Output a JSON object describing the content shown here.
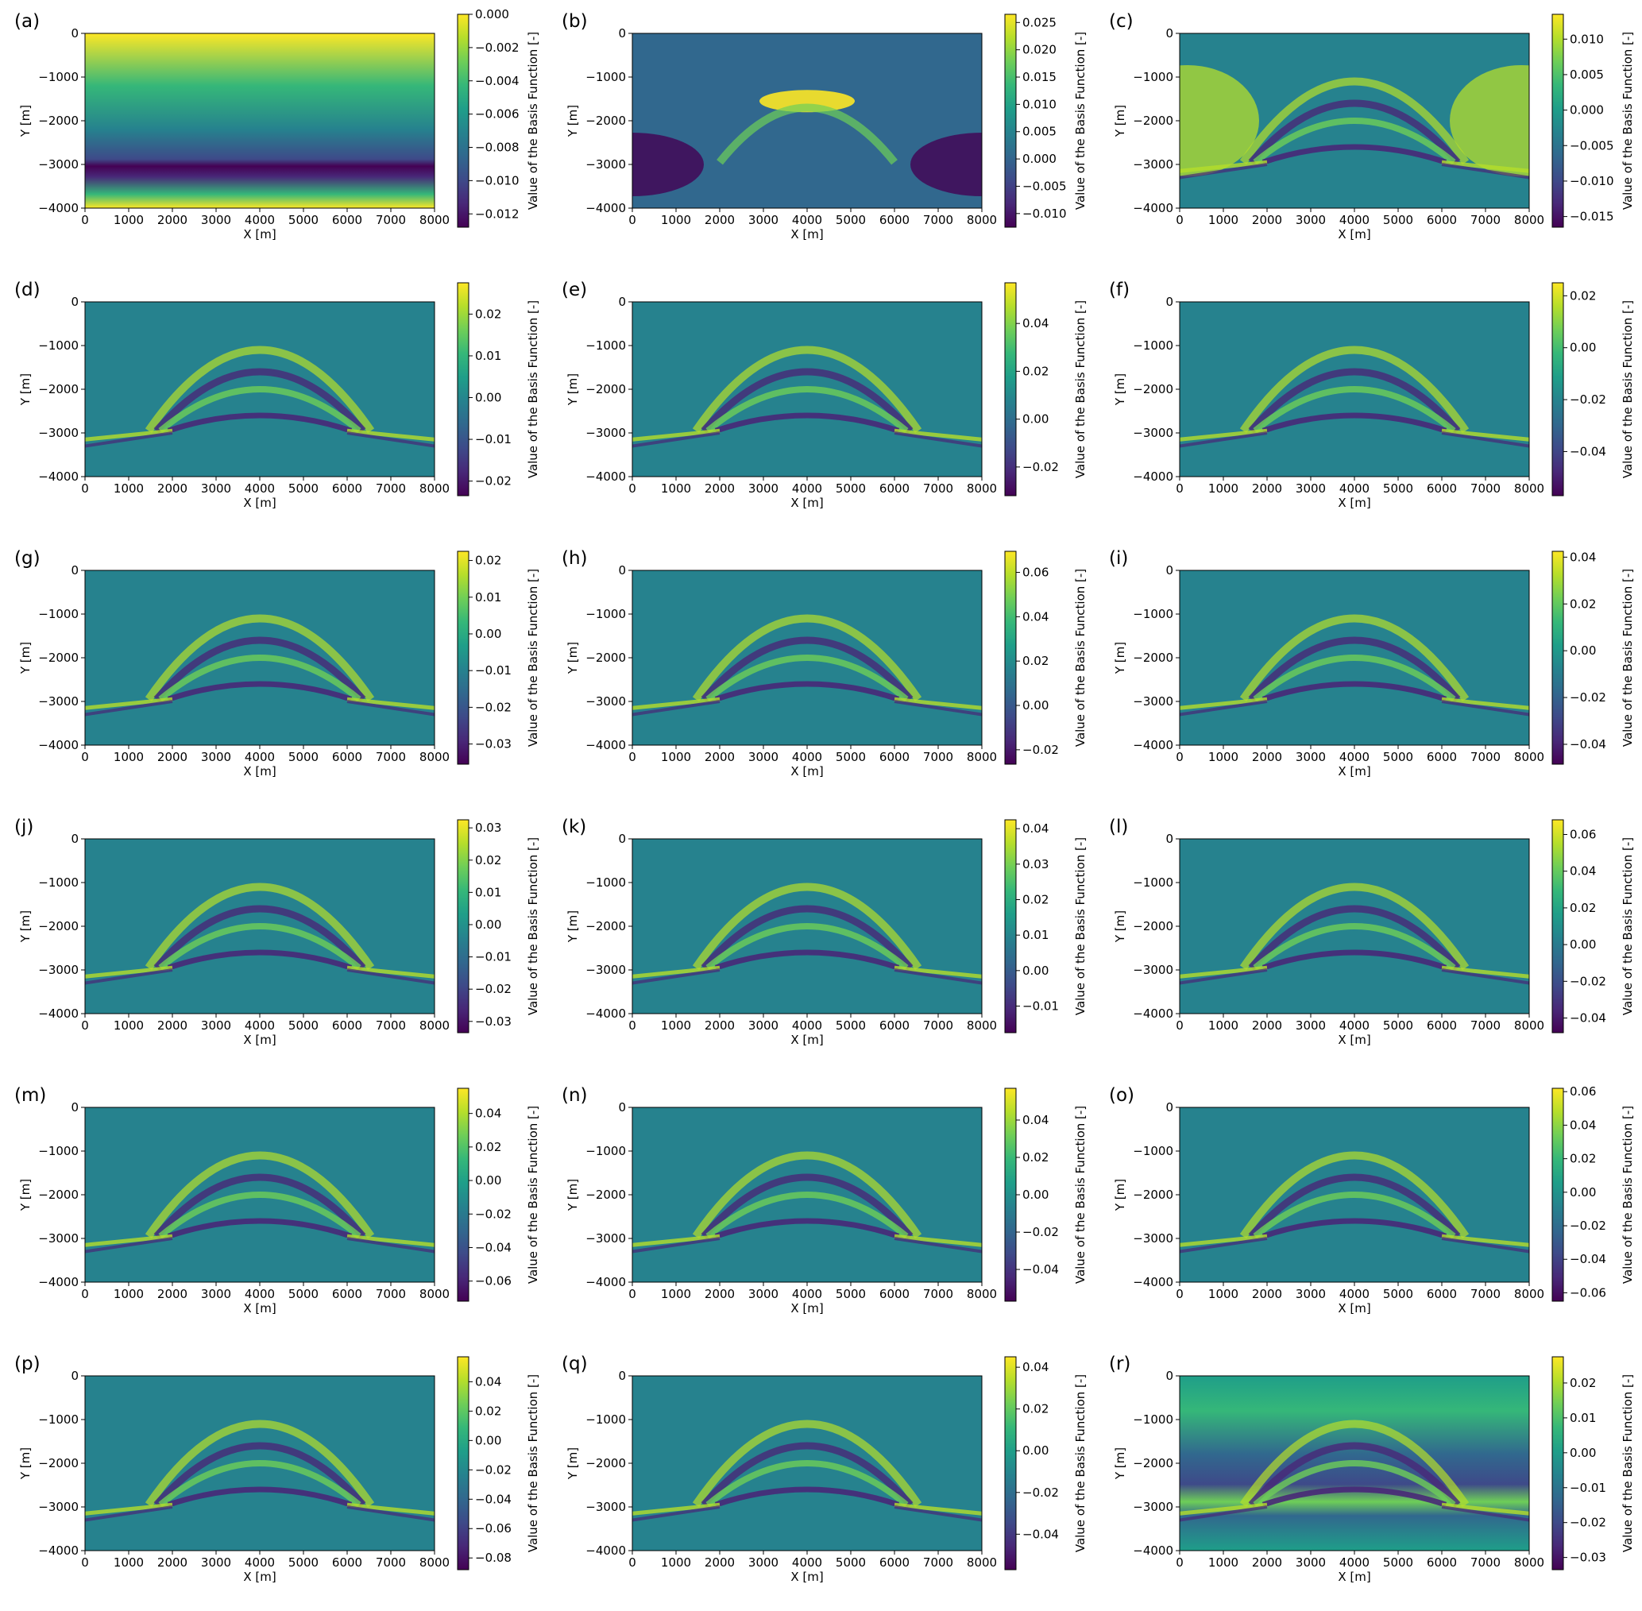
{
  "figure": {
    "colormap": "viridis",
    "colormap_stops": [
      "#440154",
      "#482878",
      "#3e4a89",
      "#31688e",
      "#26828e",
      "#1f9e89",
      "#35b779",
      "#6ece58",
      "#b5de2b",
      "#fde725"
    ]
  },
  "chart_data": [
    {
      "type": "heatmap",
      "panel_label": "(a)",
      "pattern": "layer",
      "xlabel": "X [m]",
      "ylabel": "Y [m]",
      "colorbar_label": "Value of the Basis Function [-]",
      "xlim": [
        0,
        8000
      ],
      "ylim": [
        -4000,
        0
      ],
      "x_ticks": [
        "0",
        "1000",
        "2000",
        "3000",
        "4000",
        "5000",
        "6000",
        "7000",
        "8000"
      ],
      "y_ticks": [
        "0",
        "−1000",
        "−2000",
        "−3000",
        "−4000"
      ],
      "colorbar_range": [
        -0.0128,
        0.0
      ],
      "colorbar_ticks": [
        {
          "v": 0.0,
          "label": "0.000"
        },
        {
          "v": -0.002,
          "label": "−0.002"
        },
        {
          "v": -0.004,
          "label": "−0.004"
        },
        {
          "v": -0.006,
          "label": "−0.006"
        },
        {
          "v": -0.008,
          "label": "−0.008"
        },
        {
          "v": -0.01,
          "label": "−0.010"
        },
        {
          "v": -0.012,
          "label": "−0.012"
        }
      ]
    },
    {
      "type": "heatmap",
      "panel_label": "(b)",
      "pattern": "dome-bright",
      "xlabel": "X [m]",
      "ylabel": "Y [m]",
      "colorbar_label": "Value of the Basis Function [-]",
      "xlim": [
        0,
        8000
      ],
      "ylim": [
        -4000,
        0
      ],
      "x_ticks": [
        "0",
        "1000",
        "2000",
        "3000",
        "4000",
        "5000",
        "6000",
        "7000",
        "8000"
      ],
      "y_ticks": [
        "0",
        "−1000",
        "−2000",
        "−3000",
        "−4000"
      ],
      "colorbar_range": [
        -0.0125,
        0.0265
      ],
      "colorbar_ticks": [
        {
          "v": 0.025,
          "label": "0.025"
        },
        {
          "v": 0.02,
          "label": "0.020"
        },
        {
          "v": 0.015,
          "label": "0.015"
        },
        {
          "v": 0.01,
          "label": "0.010"
        },
        {
          "v": 0.005,
          "label": "0.005"
        },
        {
          "v": 0.0,
          "label": "0.000"
        },
        {
          "v": -0.005,
          "label": "−0.005"
        },
        {
          "v": -0.01,
          "label": "−0.010"
        }
      ]
    },
    {
      "type": "heatmap",
      "panel_label": "(c)",
      "pattern": "dome-sides",
      "xlabel": "X [m]",
      "ylabel": "Y [m]",
      "colorbar_label": "Value of the Basis Function [-]",
      "xlim": [
        0,
        8000
      ],
      "ylim": [
        -4000,
        0
      ],
      "x_ticks": [
        "0",
        "1000",
        "2000",
        "3000",
        "4000",
        "5000",
        "6000",
        "7000",
        "8000"
      ],
      "y_ticks": [
        "0",
        "−1000",
        "−2000",
        "−3000",
        "−4000"
      ],
      "colorbar_range": [
        -0.0165,
        0.0135
      ],
      "colorbar_ticks": [
        {
          "v": 0.01,
          "label": "0.010"
        },
        {
          "v": 0.005,
          "label": "0.005"
        },
        {
          "v": 0.0,
          "label": "0.000"
        },
        {
          "v": -0.005,
          "label": "−0.005"
        },
        {
          "v": -0.01,
          "label": "−0.010"
        },
        {
          "v": -0.015,
          "label": "−0.015"
        }
      ]
    },
    {
      "type": "heatmap",
      "panel_label": "(d)",
      "pattern": "dome-rings",
      "xlabel": "X [m]",
      "ylabel": "Y [m]",
      "colorbar_label": "Value of the Basis Function [-]",
      "xlim": [
        0,
        8000
      ],
      "ylim": [
        -4000,
        0
      ],
      "x_ticks": [
        "0",
        "1000",
        "2000",
        "3000",
        "4000",
        "5000",
        "6000",
        "7000",
        "8000"
      ],
      "y_ticks": [
        "0",
        "−1000",
        "−2000",
        "−3000",
        "−4000"
      ],
      "colorbar_range": [
        -0.0235,
        0.0275
      ],
      "colorbar_ticks": [
        {
          "v": 0.02,
          "label": "0.02"
        },
        {
          "v": 0.01,
          "label": "0.01"
        },
        {
          "v": 0.0,
          "label": "0.00"
        },
        {
          "v": -0.01,
          "label": "−0.01"
        },
        {
          "v": -0.02,
          "label": "−0.02"
        }
      ]
    },
    {
      "type": "heatmap",
      "panel_label": "(e)",
      "pattern": "dome-rings",
      "xlabel": "X [m]",
      "ylabel": "Y [m]",
      "colorbar_label": "Value of the Basis Function [-]",
      "xlim": [
        0,
        8000
      ],
      "ylim": [
        -4000,
        0
      ],
      "x_ticks": [
        "0",
        "1000",
        "2000",
        "3000",
        "4000",
        "5000",
        "6000",
        "7000",
        "8000"
      ],
      "y_ticks": [
        "0",
        "−1000",
        "−2000",
        "−3000",
        "−4000"
      ],
      "colorbar_range": [
        -0.032,
        0.057
      ],
      "colorbar_ticks": [
        {
          "v": 0.04,
          "label": "0.04"
        },
        {
          "v": 0.02,
          "label": "0.02"
        },
        {
          "v": 0.0,
          "label": "0.00"
        },
        {
          "v": -0.02,
          "label": "−0.02"
        }
      ]
    },
    {
      "type": "heatmap",
      "panel_label": "(f)",
      "pattern": "dome-rings",
      "xlabel": "X [m]",
      "ylabel": "Y [m]",
      "colorbar_label": "Value of the Basis Function [-]",
      "xlim": [
        0,
        8000
      ],
      "ylim": [
        -4000,
        0
      ],
      "x_ticks": [
        "0",
        "1000",
        "2000",
        "3000",
        "4000",
        "5000",
        "6000",
        "7000",
        "8000"
      ],
      "y_ticks": [
        "0",
        "−1000",
        "−2000",
        "−3000",
        "−4000"
      ],
      "colorbar_range": [
        -0.057,
        0.025
      ],
      "colorbar_ticks": [
        {
          "v": 0.02,
          "label": "0.02"
        },
        {
          "v": 0.0,
          "label": "0.00"
        },
        {
          "v": -0.02,
          "label": "−0.02"
        },
        {
          "v": -0.04,
          "label": "−0.04"
        }
      ]
    },
    {
      "type": "heatmap",
      "panel_label": "(g)",
      "pattern": "dome-rings",
      "xlabel": "X [m]",
      "ylabel": "Y [m]",
      "colorbar_label": "Value of the Basis Function [-]",
      "xlim": [
        0,
        8000
      ],
      "ylim": [
        -4000,
        0
      ],
      "x_ticks": [
        "0",
        "1000",
        "2000",
        "3000",
        "4000",
        "5000",
        "6000",
        "7000",
        "8000"
      ],
      "y_ticks": [
        "0",
        "−1000",
        "−2000",
        "−3000",
        "−4000"
      ],
      "colorbar_range": [
        -0.0355,
        0.0225
      ],
      "colorbar_ticks": [
        {
          "v": 0.02,
          "label": "0.02"
        },
        {
          "v": 0.01,
          "label": "0.01"
        },
        {
          "v": 0.0,
          "label": "0.00"
        },
        {
          "v": -0.01,
          "label": "−0.01"
        },
        {
          "v": -0.02,
          "label": "−0.02"
        },
        {
          "v": -0.03,
          "label": "−0.03"
        }
      ]
    },
    {
      "type": "heatmap",
      "panel_label": "(h)",
      "pattern": "dome-rings",
      "xlabel": "X [m]",
      "ylabel": "Y [m]",
      "colorbar_label": "Value of the Basis Function [-]",
      "xlim": [
        0,
        8000
      ],
      "ylim": [
        -4000,
        0
      ],
      "x_ticks": [
        "0",
        "1000",
        "2000",
        "3000",
        "4000",
        "5000",
        "6000",
        "7000",
        "8000"
      ],
      "y_ticks": [
        "0",
        "−1000",
        "−2000",
        "−3000",
        "−4000"
      ],
      "colorbar_range": [
        -0.0265,
        0.0695
      ],
      "colorbar_ticks": [
        {
          "v": 0.06,
          "label": "0.06"
        },
        {
          "v": 0.04,
          "label": "0.04"
        },
        {
          "v": 0.02,
          "label": "0.02"
        },
        {
          "v": 0.0,
          "label": "0.00"
        },
        {
          "v": -0.02,
          "label": "−0.02"
        }
      ]
    },
    {
      "type": "heatmap",
      "panel_label": "(i)",
      "pattern": "dome-rings",
      "xlabel": "X [m]",
      "ylabel": "Y [m]",
      "colorbar_label": "Value of the Basis Function [-]",
      "xlim": [
        0,
        8000
      ],
      "ylim": [
        -4000,
        0
      ],
      "x_ticks": [
        "0",
        "1000",
        "2000",
        "3000",
        "4000",
        "5000",
        "6000",
        "7000",
        "8000"
      ],
      "y_ticks": [
        "0",
        "−1000",
        "−2000",
        "−3000",
        "−4000"
      ],
      "colorbar_range": [
        -0.0485,
        0.0425
      ],
      "colorbar_ticks": [
        {
          "v": 0.04,
          "label": "0.04"
        },
        {
          "v": 0.02,
          "label": "0.02"
        },
        {
          "v": 0.0,
          "label": "0.00"
        },
        {
          "v": -0.02,
          "label": "−0.02"
        },
        {
          "v": -0.04,
          "label": "−0.04"
        }
      ]
    },
    {
      "type": "heatmap",
      "panel_label": "(j)",
      "pattern": "dome-rings",
      "xlabel": "X [m]",
      "ylabel": "Y [m]",
      "colorbar_label": "Value of the Basis Function [-]",
      "xlim": [
        0,
        8000
      ],
      "ylim": [
        -4000,
        0
      ],
      "x_ticks": [
        "0",
        "1000",
        "2000",
        "3000",
        "4000",
        "5000",
        "6000",
        "7000",
        "8000"
      ],
      "y_ticks": [
        "0",
        "−1000",
        "−2000",
        "−3000",
        "−4000"
      ],
      "colorbar_range": [
        -0.0335,
        0.0325
      ],
      "colorbar_ticks": [
        {
          "v": 0.03,
          "label": "0.03"
        },
        {
          "v": 0.02,
          "label": "0.02"
        },
        {
          "v": 0.01,
          "label": "0.01"
        },
        {
          "v": 0.0,
          "label": "0.00"
        },
        {
          "v": -0.01,
          "label": "−0.01"
        },
        {
          "v": -0.02,
          "label": "−0.02"
        },
        {
          "v": -0.03,
          "label": "−0.03"
        }
      ]
    },
    {
      "type": "heatmap",
      "panel_label": "(k)",
      "pattern": "dome-rings",
      "xlabel": "X [m]",
      "ylabel": "Y [m]",
      "colorbar_label": "Value of the Basis Function [-]",
      "xlim": [
        0,
        8000
      ],
      "ylim": [
        -4000,
        0
      ],
      "x_ticks": [
        "0",
        "1000",
        "2000",
        "3000",
        "4000",
        "5000",
        "6000",
        "7000",
        "8000"
      ],
      "y_ticks": [
        "0",
        "−1000",
        "−2000",
        "−3000",
        "−4000"
      ],
      "colorbar_range": [
        -0.0175,
        0.0425
      ],
      "colorbar_ticks": [
        {
          "v": 0.04,
          "label": "0.04"
        },
        {
          "v": 0.03,
          "label": "0.03"
        },
        {
          "v": 0.02,
          "label": "0.02"
        },
        {
          "v": 0.01,
          "label": "0.01"
        },
        {
          "v": 0.0,
          "label": "0.00"
        },
        {
          "v": -0.01,
          "label": "−0.01"
        }
      ]
    },
    {
      "type": "heatmap",
      "panel_label": "(l)",
      "pattern": "dome-rings",
      "xlabel": "X [m]",
      "ylabel": "Y [m]",
      "colorbar_label": "Value of the Basis Function [-]",
      "xlim": [
        0,
        8000
      ],
      "ylim": [
        -4000,
        0
      ],
      "x_ticks": [
        "0",
        "1000",
        "2000",
        "3000",
        "4000",
        "5000",
        "6000",
        "7000",
        "8000"
      ],
      "y_ticks": [
        "0",
        "−1000",
        "−2000",
        "−3000",
        "−4000"
      ],
      "colorbar_range": [
        -0.048,
        0.068
      ],
      "colorbar_ticks": [
        {
          "v": 0.06,
          "label": "0.06"
        },
        {
          "v": 0.04,
          "label": "0.04"
        },
        {
          "v": 0.02,
          "label": "0.02"
        },
        {
          "v": 0.0,
          "label": "0.00"
        },
        {
          "v": -0.02,
          "label": "−0.02"
        },
        {
          "v": -0.04,
          "label": "−0.04"
        }
      ]
    },
    {
      "type": "heatmap",
      "panel_label": "(m)",
      "pattern": "dome-rings",
      "xlabel": "X [m]",
      "ylabel": "Y [m]",
      "colorbar_label": "Value of the Basis Function [-]",
      "xlim": [
        0,
        8000
      ],
      "ylim": [
        -4000,
        0
      ],
      "x_ticks": [
        "0",
        "1000",
        "2000",
        "3000",
        "4000",
        "5000",
        "6000",
        "7000",
        "8000"
      ],
      "y_ticks": [
        "0",
        "−1000",
        "−2000",
        "−3000",
        "−4000"
      ],
      "colorbar_range": [
        -0.072,
        0.055
      ],
      "colorbar_ticks": [
        {
          "v": 0.04,
          "label": "0.04"
        },
        {
          "v": 0.02,
          "label": "0.02"
        },
        {
          "v": 0.0,
          "label": "0.00"
        },
        {
          "v": -0.02,
          "label": "−0.02"
        },
        {
          "v": -0.04,
          "label": "−0.04"
        },
        {
          "v": -0.06,
          "label": "−0.06"
        }
      ]
    },
    {
      "type": "heatmap",
      "panel_label": "(n)",
      "pattern": "dome-rings",
      "xlabel": "X [m]",
      "ylabel": "Y [m]",
      "colorbar_label": "Value of the Basis Function [-]",
      "xlim": [
        0,
        8000
      ],
      "ylim": [
        -4000,
        0
      ],
      "x_ticks": [
        "0",
        "1000",
        "2000",
        "3000",
        "4000",
        "5000",
        "6000",
        "7000",
        "8000"
      ],
      "y_ticks": [
        "0",
        "−1000",
        "−2000",
        "−3000",
        "−4000"
      ],
      "colorbar_range": [
        -0.057,
        0.057
      ],
      "colorbar_ticks": [
        {
          "v": 0.04,
          "label": "0.04"
        },
        {
          "v": 0.02,
          "label": "0.02"
        },
        {
          "v": 0.0,
          "label": "0.00"
        },
        {
          "v": -0.02,
          "label": "−0.02"
        },
        {
          "v": -0.04,
          "label": "−0.04"
        }
      ]
    },
    {
      "type": "heatmap",
      "panel_label": "(o)",
      "pattern": "dome-rings",
      "xlabel": "X [m]",
      "ylabel": "Y [m]",
      "colorbar_label": "Value of the Basis Function [-]",
      "xlim": [
        0,
        8000
      ],
      "ylim": [
        -4000,
        0
      ],
      "x_ticks": [
        "0",
        "1000",
        "2000",
        "3000",
        "4000",
        "5000",
        "6000",
        "7000",
        "8000"
      ],
      "y_ticks": [
        "0",
        "−1000",
        "−2000",
        "−3000",
        "−4000"
      ],
      "colorbar_range": [
        -0.065,
        0.062
      ],
      "colorbar_ticks": [
        {
          "v": 0.06,
          "label": "0.06"
        },
        {
          "v": 0.04,
          "label": "0.04"
        },
        {
          "v": 0.02,
          "label": "0.02"
        },
        {
          "v": 0.0,
          "label": "0.00"
        },
        {
          "v": -0.02,
          "label": "−0.02"
        },
        {
          "v": -0.04,
          "label": "−0.04"
        },
        {
          "v": -0.06,
          "label": "−0.06"
        }
      ]
    },
    {
      "type": "heatmap",
      "panel_label": "(p)",
      "pattern": "dome-rings",
      "xlabel": "X [m]",
      "ylabel": "Y [m]",
      "colorbar_label": "Value of the Basis Function [-]",
      "xlim": [
        0,
        8000
      ],
      "ylim": [
        -4000,
        0
      ],
      "x_ticks": [
        "0",
        "1000",
        "2000",
        "3000",
        "4000",
        "5000",
        "6000",
        "7000",
        "8000"
      ],
      "y_ticks": [
        "0",
        "−1000",
        "−2000",
        "−3000",
        "−4000"
      ],
      "colorbar_range": [
        -0.088,
        0.057
      ],
      "colorbar_ticks": [
        {
          "v": 0.04,
          "label": "0.04"
        },
        {
          "v": 0.02,
          "label": "0.02"
        },
        {
          "v": 0.0,
          "label": "0.00"
        },
        {
          "v": -0.02,
          "label": "−0.02"
        },
        {
          "v": -0.04,
          "label": "−0.04"
        },
        {
          "v": -0.06,
          "label": "−0.06"
        },
        {
          "v": -0.08,
          "label": "−0.08"
        }
      ]
    },
    {
      "type": "heatmap",
      "panel_label": "(q)",
      "pattern": "dome-rings",
      "xlabel": "X [m]",
      "ylabel": "Y [m]",
      "colorbar_label": "Value of the Basis Function [-]",
      "xlim": [
        0,
        8000
      ],
      "ylim": [
        -4000,
        0
      ],
      "x_ticks": [
        "0",
        "1000",
        "2000",
        "3000",
        "4000",
        "5000",
        "6000",
        "7000",
        "8000"
      ],
      "y_ticks": [
        "0",
        "−1000",
        "−2000",
        "−3000",
        "−4000"
      ],
      "colorbar_range": [
        -0.057,
        0.045
      ],
      "colorbar_ticks": [
        {
          "v": 0.04,
          "label": "0.04"
        },
        {
          "v": 0.02,
          "label": "0.02"
        },
        {
          "v": 0.0,
          "label": "0.00"
        },
        {
          "v": -0.02,
          "label": "−0.02"
        },
        {
          "v": -0.04,
          "label": "−0.04"
        }
      ]
    },
    {
      "type": "heatmap",
      "panel_label": "(r)",
      "pattern": "bands",
      "xlabel": "X [m]",
      "ylabel": "Y [m]",
      "colorbar_label": "Value of the Basis Function [-]",
      "xlim": [
        0,
        8000
      ],
      "ylim": [
        -4000,
        0
      ],
      "x_ticks": [
        "0",
        "1000",
        "2000",
        "3000",
        "4000",
        "5000",
        "6000",
        "7000",
        "8000"
      ],
      "y_ticks": [
        "0",
        "−1000",
        "−2000",
        "−3000",
        "−4000"
      ],
      "colorbar_range": [
        -0.0335,
        0.0275
      ],
      "colorbar_ticks": [
        {
          "v": 0.02,
          "label": "0.02"
        },
        {
          "v": 0.01,
          "label": "0.01"
        },
        {
          "v": 0.0,
          "label": "0.00"
        },
        {
          "v": -0.01,
          "label": "−0.01"
        },
        {
          "v": -0.02,
          "label": "−0.02"
        },
        {
          "v": -0.03,
          "label": "−0.03"
        }
      ]
    }
  ]
}
